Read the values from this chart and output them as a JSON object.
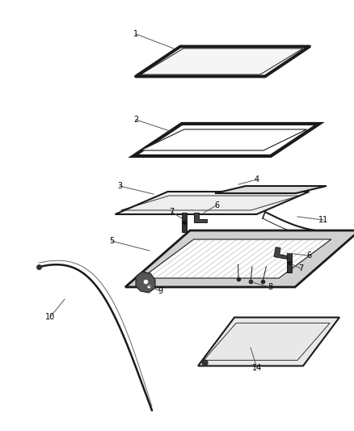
{
  "background_color": "#ffffff",
  "line_color": "#1a1a1a",
  "label_color": "#000000",
  "fig_w": 4.38,
  "fig_h": 5.33,
  "dpi": 100
}
